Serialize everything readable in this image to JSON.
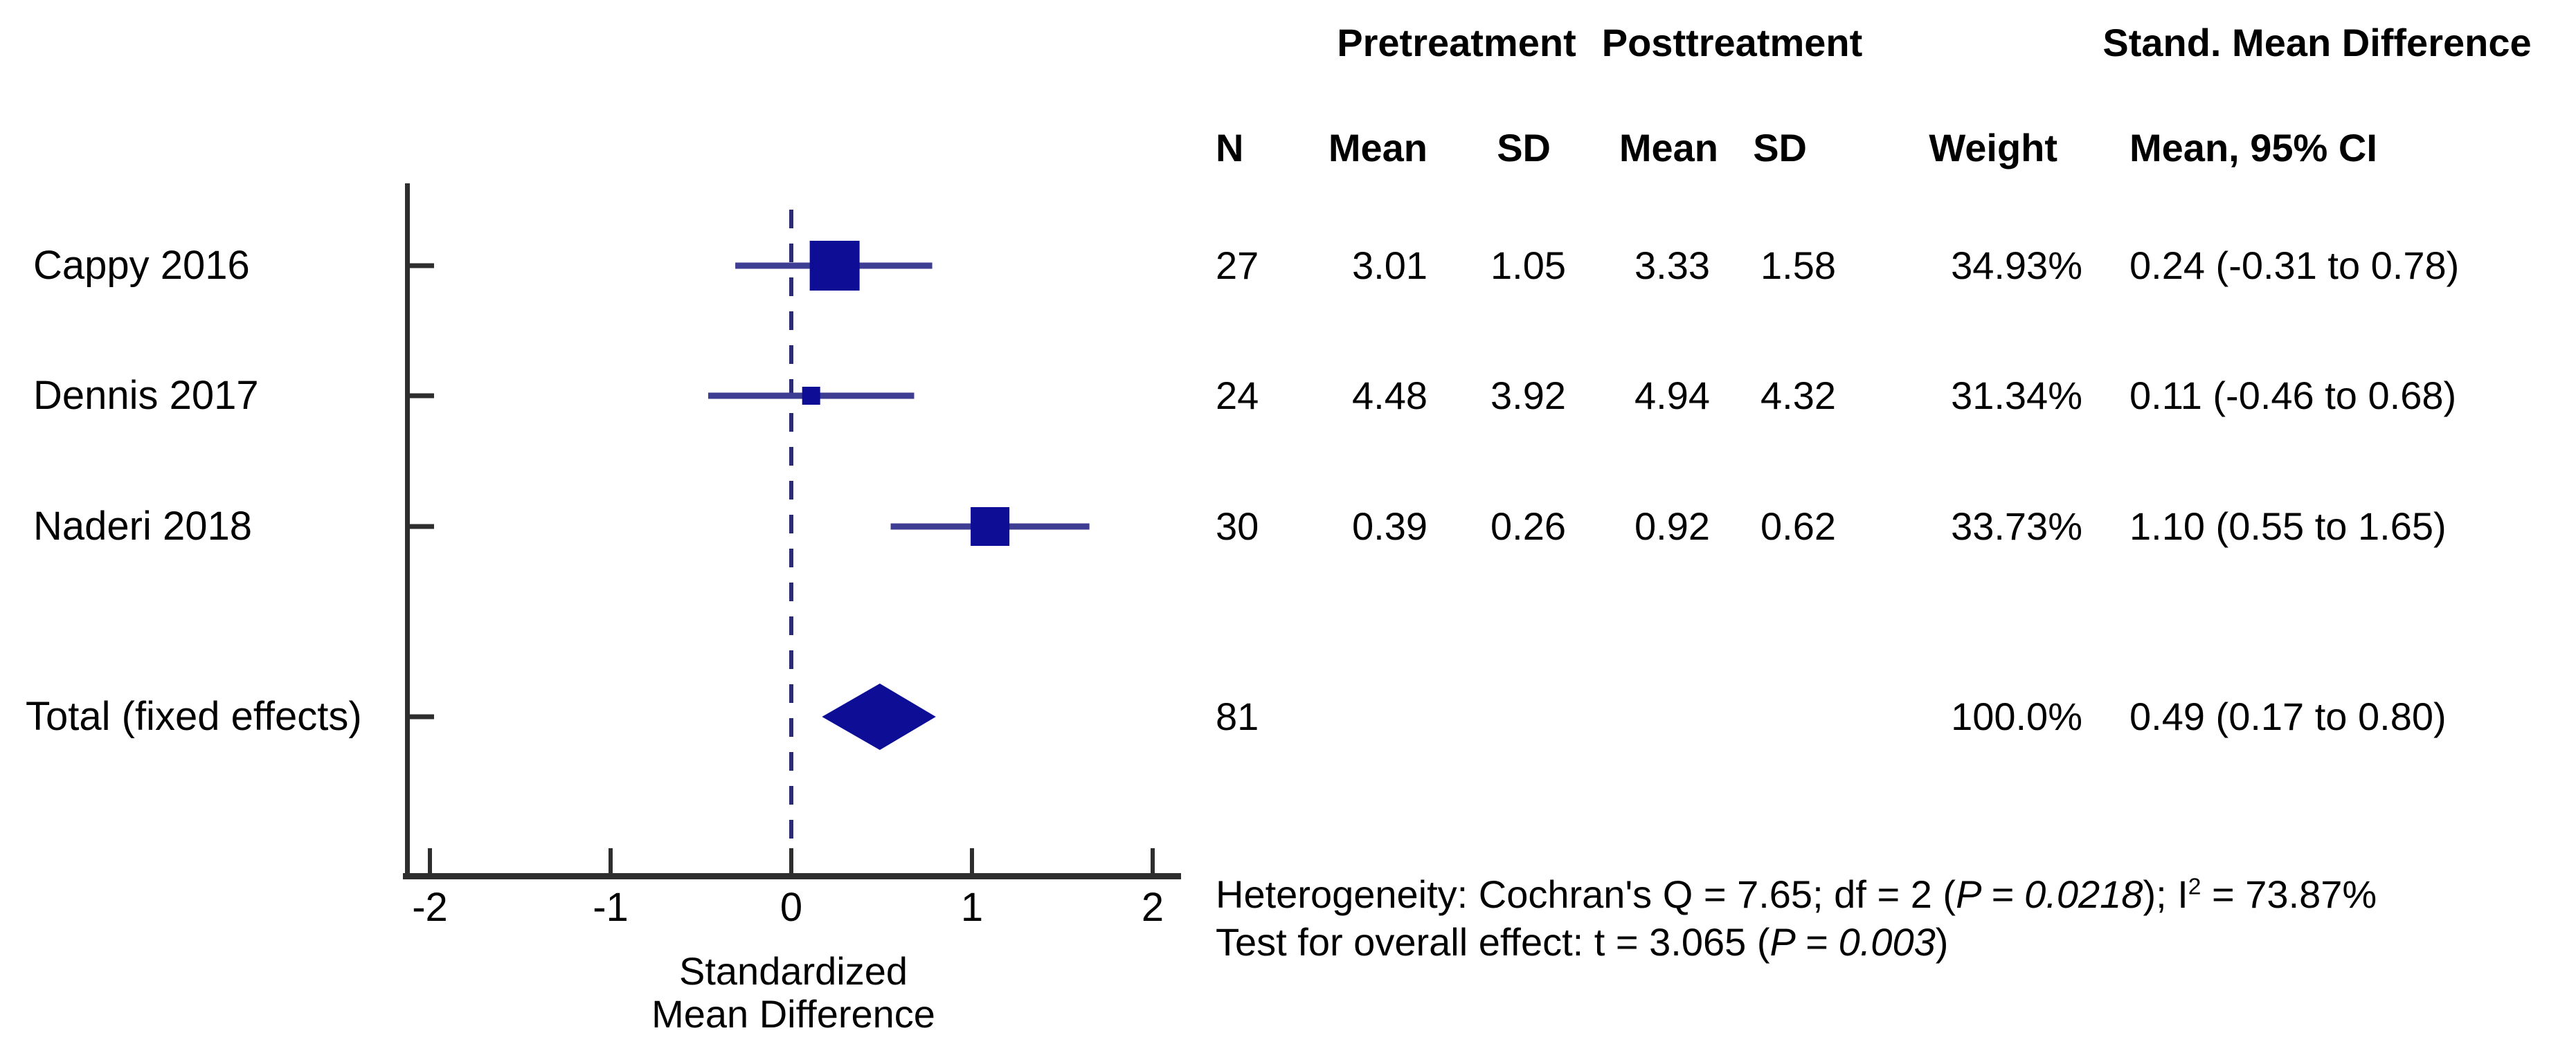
{
  "colors": {
    "marker_fill": "#0d0d96",
    "ci_line": "#3d3d93",
    "zero_line_dashed": "#2b2b78",
    "axis": "#2e2e2e",
    "text": "#000000",
    "background": "#ffffff"
  },
  "table": {
    "group_headers": {
      "pretreatment": "Pretreatment",
      "posttreatment": "Posttreatment",
      "smd": "Stand. Mean Difference"
    },
    "column_headers": [
      "N",
      "Mean",
      "SD",
      "Mean",
      "SD",
      "Weight",
      "Mean, 95% CI"
    ],
    "rows": [
      [
        "27",
        "3.01",
        "1.05",
        "3.33",
        "1.58",
        "34.93%",
        "0.24 (-0.31 to 0.78)"
      ],
      [
        "24",
        "4.48",
        "3.92",
        "4.94",
        "4.32",
        "31.34%",
        "0.11 (-0.46 to 0.68)"
      ],
      [
        "30",
        "0.39",
        "0.26",
        "0.92",
        "0.62",
        "33.73%",
        "1.10 (0.55 to 1.65)"
      ]
    ],
    "total_row": [
      "81",
      "",
      "",
      "",
      "",
      "100.0%",
      "0.49 (0.17 to 0.80)"
    ]
  },
  "chart_data": {
    "type": "forest",
    "x_axis": {
      "title_line1": "Standardized",
      "title_line2": "Mean Difference",
      "ticks": [
        -2,
        -1,
        0,
        1,
        2
      ],
      "range": [
        -2.12,
        2.15
      ],
      "zero_reference_line": 0
    },
    "studies": [
      {
        "label": "Cappy 2016",
        "n": 27,
        "pre_mean": 3.01,
        "pre_sd": 1.05,
        "post_mean": 3.33,
        "post_sd": 1.58,
        "weight_pct": 34.93,
        "smd": 0.24,
        "ci_low": -0.31,
        "ci_high": 0.78,
        "marker_size": 72
      },
      {
        "label": "Dennis 2017",
        "n": 24,
        "pre_mean": 4.48,
        "pre_sd": 3.92,
        "post_mean": 4.94,
        "post_sd": 4.32,
        "weight_pct": 31.34,
        "smd": 0.11,
        "ci_low": -0.46,
        "ci_high": 0.68,
        "marker_size": 26
      },
      {
        "label": "Naderi 2018",
        "n": 30,
        "pre_mean": 0.39,
        "pre_sd": 0.26,
        "post_mean": 0.92,
        "post_sd": 0.62,
        "weight_pct": 33.73,
        "smd": 1.1,
        "ci_low": 0.55,
        "ci_high": 1.65,
        "marker_size": 56
      }
    ],
    "total": {
      "label": "Total (fixed effects)",
      "n": 81,
      "weight_pct": 100.0,
      "smd": 0.49,
      "ci_low": 0.17,
      "ci_high": 0.8
    }
  },
  "footer": {
    "heterogeneity": {
      "prefix": "Heterogeneity: Cochran's Q = 7.65; df = 2 (",
      "italic": "P = 0.0218",
      "mid": "); I",
      "sup": "2",
      "suffix": " = 73.87%"
    },
    "overall": {
      "prefix": "Test for overall effect: t = 3.065 (",
      "italic": "P = 0.003",
      "suffix": ")"
    }
  }
}
